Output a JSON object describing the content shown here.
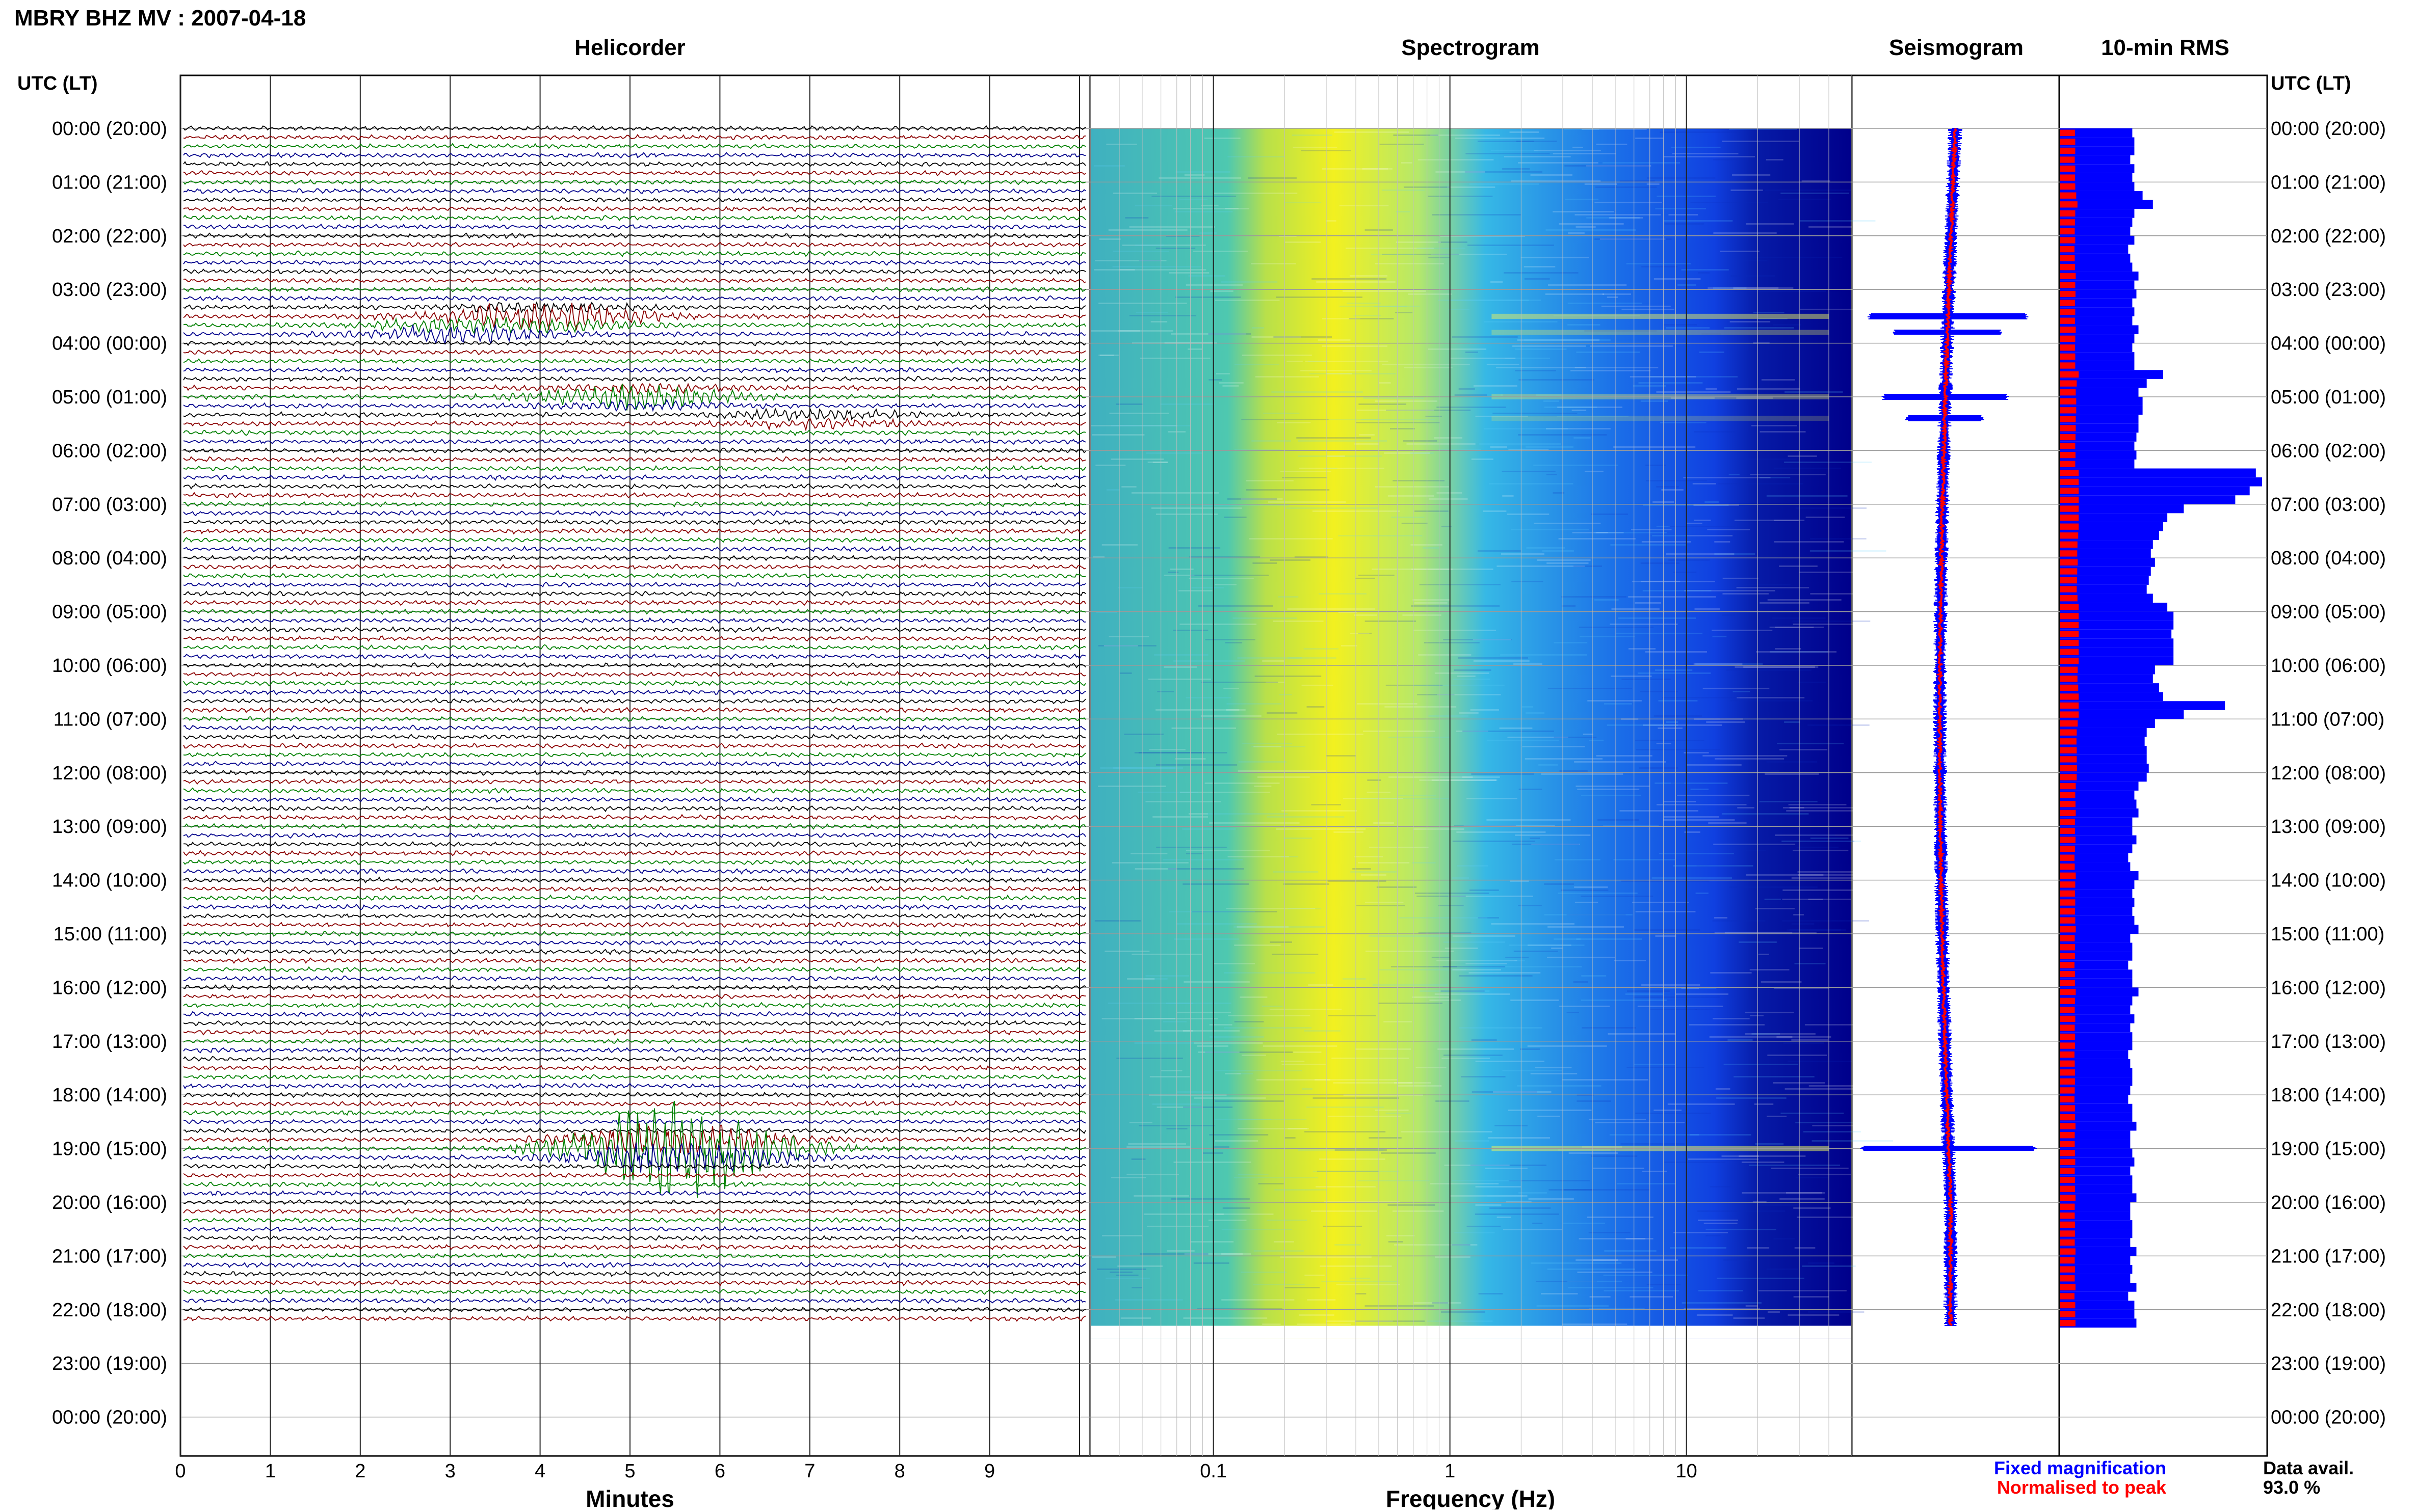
{
  "header": {
    "title": "MBRY BHZ MV : 2007-04-18"
  },
  "panels": {
    "helicorder": "Helicorder",
    "spectrogram": "Spectrogram",
    "seismogram": "Seismogram",
    "rms": "10-min RMS"
  },
  "axis": {
    "utc_label_left": "UTC (LT)",
    "utc_label_right": "UTC (LT)",
    "minutes_label": "Minutes",
    "frequency_label": "Frequency (Hz)"
  },
  "legend": {
    "fixed": "Fixed magnification",
    "normalised": "Normalised to peak",
    "data_avail_label": "Data avail.",
    "data_avail_value": "93.0 %"
  },
  "colors": {
    "trace_cycle": [
      "#000000",
      "#8b0000",
      "#008000",
      "#00008b"
    ],
    "fixed": "#0000ff",
    "normalised": "#ff0000",
    "spec_low": "#00007f",
    "spec_mid": "#1e90ff",
    "spec_high": "#ffff00"
  },
  "chart_data": {
    "type": "heatmap",
    "hours": [
      "00:00 (20:00)",
      "01:00 (21:00)",
      "02:00 (22:00)",
      "03:00 (23:00)",
      "04:00 (00:00)",
      "05:00 (01:00)",
      "06:00 (02:00)",
      "07:00 (03:00)",
      "08:00 (04:00)",
      "09:00 (05:00)",
      "10:00 (06:00)",
      "11:00 (07:00)",
      "12:00 (08:00)",
      "13:00 (09:00)",
      "14:00 (10:00)",
      "15:00 (11:00)",
      "16:00 (12:00)",
      "17:00 (13:00)",
      "18:00 (14:00)",
      "19:00 (15:00)",
      "20:00 (16:00)",
      "21:00 (17:00)",
      "22:00 (18:00)",
      "23:00 (19:00)",
      "00:00 (20:00)"
    ],
    "minutes_ticks": [
      "0",
      "1",
      "2",
      "3",
      "4",
      "5",
      "6",
      "7",
      "8",
      "9"
    ],
    "freq_ticks": [
      "0.1",
      "1",
      "10"
    ],
    "xlim_minutes": [
      0,
      10
    ],
    "freq_range_hz": [
      0.03,
      50
    ],
    "data_end_hour": 22.3,
    "events": [
      {
        "hour": 3.5,
        "minute": 4.0,
        "strength": 0.9
      },
      {
        "hour": 3.8,
        "minute": 3.0,
        "strength": 0.6
      },
      {
        "hour": 5.0,
        "minute": 5.0,
        "strength": 0.7
      },
      {
        "hour": 5.4,
        "minute": 7.0,
        "strength": 0.4
      },
      {
        "hour": 19.0,
        "minute": 5.5,
        "strength": 1.0
      }
    ],
    "rms_fixed": [
      0.35,
      0.36,
      0.36,
      0.34,
      0.36,
      0.35,
      0.36,
      0.4,
      0.45,
      0.36,
      0.35,
      0.34,
      0.36,
      0.33,
      0.34,
      0.35,
      0.38,
      0.36,
      0.37,
      0.35,
      0.36,
      0.35,
      0.38,
      0.36,
      0.35,
      0.36,
      0.36,
      0.5,
      0.42,
      0.38,
      0.4,
      0.4,
      0.38,
      0.38,
      0.37,
      0.36,
      0.37,
      0.36,
      0.95,
      0.98,
      0.92,
      0.85,
      0.6,
      0.52,
      0.5,
      0.48,
      0.45,
      0.44,
      0.46,
      0.44,
      0.43,
      0.42,
      0.45,
      0.52,
      0.55,
      0.55,
      0.54,
      0.55,
      0.55,
      0.55,
      0.46,
      0.45,
      0.48,
      0.5,
      0.8,
      0.6,
      0.46,
      0.42,
      0.41,
      0.42,
      0.42,
      0.43,
      0.42,
      0.38,
      0.36,
      0.37,
      0.38,
      0.35,
      0.35,
      0.37,
      0.35,
      0.33,
      0.34,
      0.38,
      0.36,
      0.35,
      0.36,
      0.35,
      0.36,
      0.38,
      0.34,
      0.35,
      0.35,
      0.33,
      0.35,
      0.35,
      0.38,
      0.35,
      0.34,
      0.36,
      0.34,
      0.35,
      0.35,
      0.33,
      0.34,
      0.35,
      0.35,
      0.34,
      0.33,
      0.35,
      0.35,
      0.37,
      0.34,
      0.34,
      0.35,
      0.36,
      0.34,
      0.35,
      0.35,
      0.37,
      0.34,
      0.34,
      0.35,
      0.35,
      0.34,
      0.37,
      0.34,
      0.35,
      0.34,
      0.37,
      0.33,
      0.36,
      0.36,
      0.37,
      0.35,
      0.34,
      0.36,
      0.35,
      0.36,
      0.35,
      0.33,
      0.34,
      0.35,
      0.34,
      0.33,
      0.33,
      0.35,
      0.36,
      0.33,
      0.35,
      0.33,
      0.35,
      0.35,
      0.34,
      0.33,
      0.35,
      0.35,
      0.34,
      0.35,
      0.33,
      0.35,
      0.36,
      0.35,
      0.34,
      0.34,
      0.35,
      0.34,
      0.35,
      0.35,
      0.34,
      0.33,
      0.37,
      0.34,
      0.34,
      0.35,
      0.35,
      0.34,
      0.34,
      0.36,
      0.35,
      0.35,
      0.34,
      0.35,
      0.35,
      0.37,
      0.36,
      0.34,
      0.35,
      0.35,
      0.37,
      0.35,
      0.34,
      0.34,
      0.36,
      0.35,
      0.36,
      0.34,
      0.34,
      0.34,
      0.34,
      0.35,
      0.35,
      0.37,
      0.36,
      0.36,
      0.34,
      0.36,
      0.36,
      0.34,
      0.36,
      0.34,
      0.33,
      0.34,
      0.35,
      0.36,
      0.35,
      0.34,
      0.34,
      0.34,
      0.36,
      0.35,
      0.35,
      0.33,
      0.34,
      0.36,
      0.35,
      0.35,
      0.35,
      0.34,
      0.35,
      0.35,
      0.33,
      0.34,
      0.35,
      0.36,
      0.35,
      0.33,
      0.35,
      0.36,
      0.35,
      0.34,
      0.36,
      0.36,
      0.35,
      0.35,
      0.36,
      0.34,
      0.35,
      0.33,
      0.36,
      0.34,
      0.35,
      0.35,
      0.36,
      0.36,
      0.34,
      0.36,
      0.34,
      0.35,
      0.35,
      0.34,
      0.35,
      0.35,
      0.35,
      0.35,
      0.34,
      0.36,
      0.34,
      0.35,
      0.35,
      0.36,
      0.34,
      0.34,
      0.34,
      0.36,
      0.35,
      0.34,
      0.35,
      0.35,
      0.36,
      0.34,
      0.34,
      0.35,
      0.35,
      0.33,
      0.35,
      0.35,
      0.35,
      0.35,
      0.36,
      0.35,
      0.34,
      0.34,
      0.36,
      0.35,
      0.35,
      0.35,
      0.34,
      0.35,
      0.34,
      0.35,
      0.35,
      0.35,
      0.35,
      0.35,
      0.33,
      0.35,
      0.35,
      0.35,
      0.35,
      0.34,
      0.34,
      0.35,
      0.35,
      0.34,
      0.35,
      0.35,
      0.34,
      0.34,
      0.35,
      0.35,
      0.34
    ],
    "rms_normalised_note": ""
  }
}
